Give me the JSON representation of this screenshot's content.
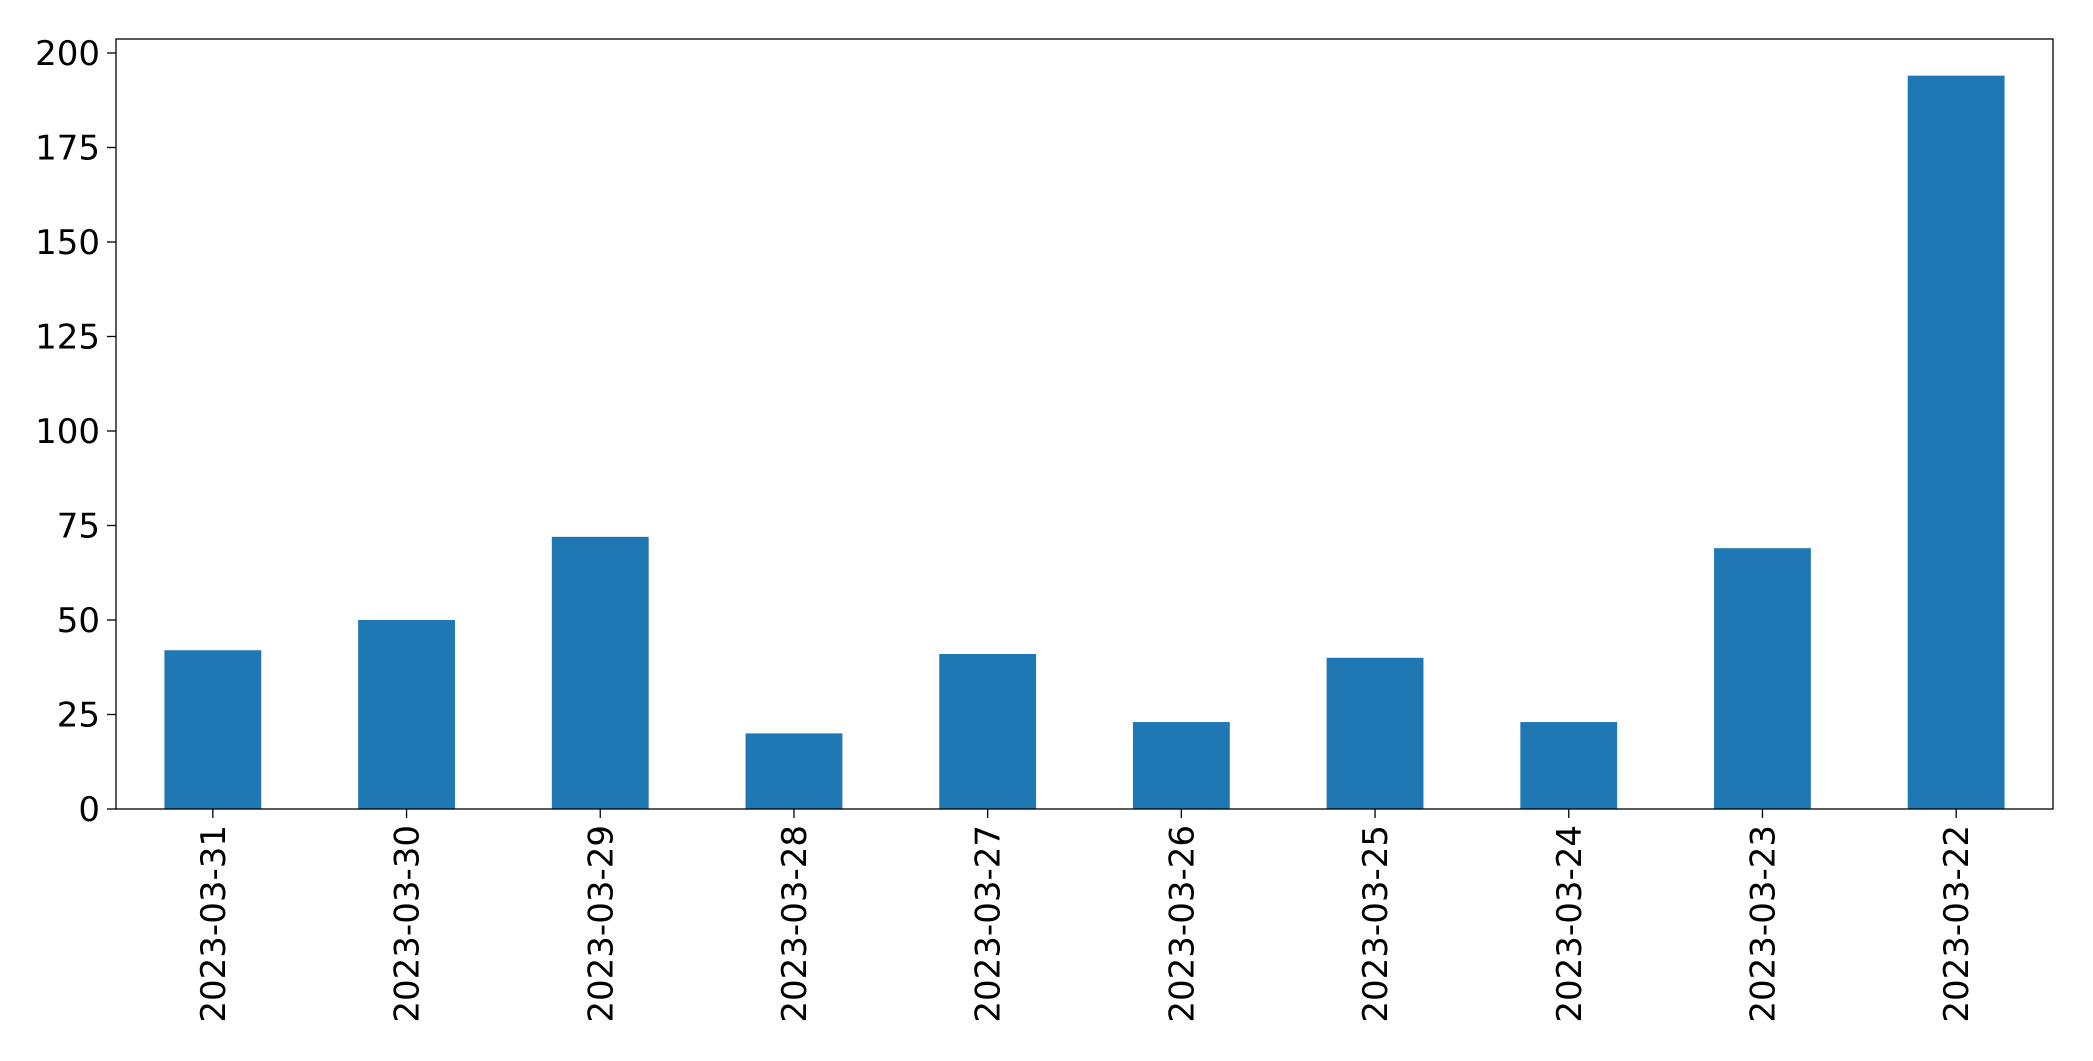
{
  "chart_data": {
    "type": "bar",
    "categories": [
      "2023-03-31",
      "2023-03-30",
      "2023-03-29",
      "2023-03-28",
      "2023-03-27",
      "2023-03-26",
      "2023-03-25",
      "2023-03-24",
      "2023-03-23",
      "2023-03-22"
    ],
    "values": [
      42,
      50,
      72,
      20,
      41,
      23,
      40,
      23,
      69,
      194
    ],
    "color": "#1f77b4",
    "ylim": [
      0,
      203.7
    ],
    "yticks": [
      0,
      25,
      50,
      75,
      100,
      125,
      150,
      175,
      200
    ],
    "grid": false
  }
}
